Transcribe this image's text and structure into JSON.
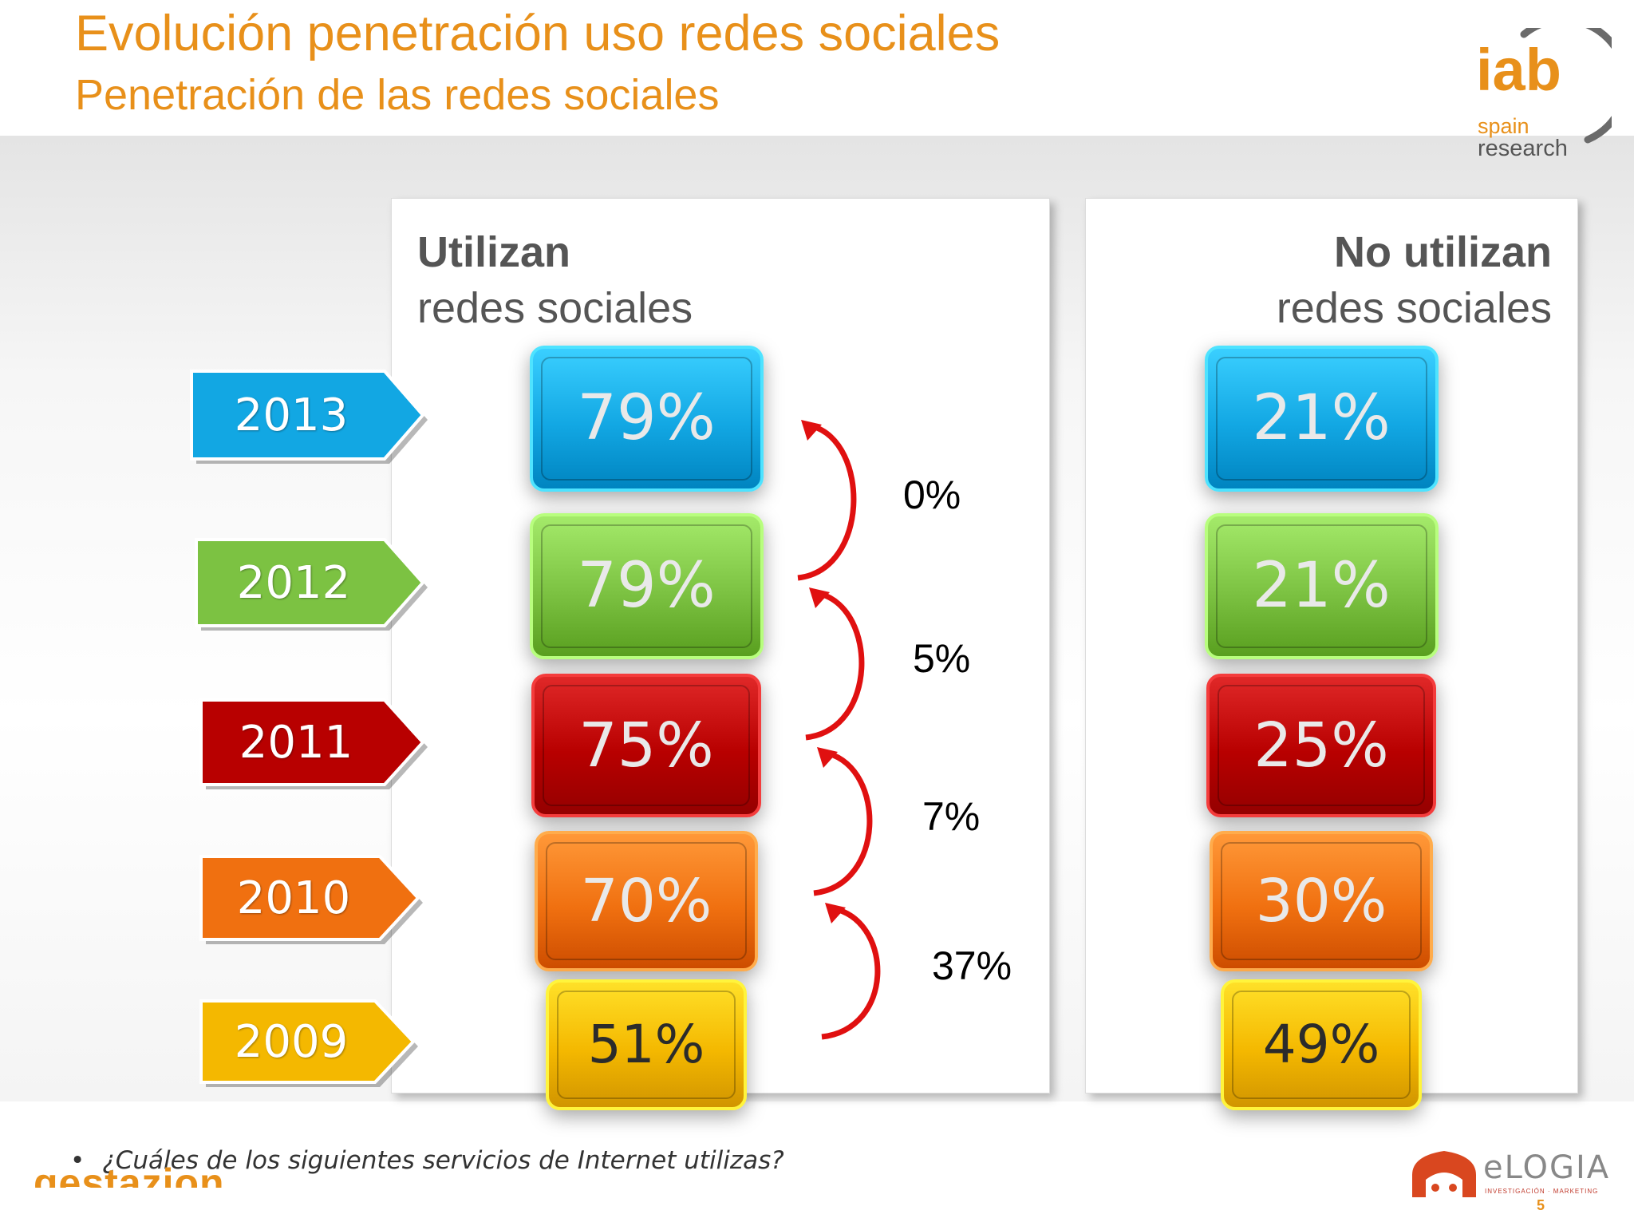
{
  "title": "Evolución penetración uso redes sociales",
  "subtitle": "Penetración de las redes sociales",
  "logo": {
    "main": "iab",
    "line1": "spain",
    "line2": "research"
  },
  "panels": {
    "left": {
      "heading_bold": "Utilizan",
      "heading": "redes sociales"
    },
    "right": {
      "heading_bold": "No utilizan",
      "heading": "redes sociales"
    }
  },
  "chart_data": {
    "type": "table",
    "categories": [
      "2013",
      "2012",
      "2011",
      "2010",
      "2009"
    ],
    "series": [
      {
        "name": "Utilizan redes sociales",
        "values": [
          79,
          79,
          75,
          70,
          51
        ],
        "labels": [
          "79%",
          "79%",
          "75%",
          "70%",
          "51%"
        ]
      },
      {
        "name": "No utilizan redes sociales",
        "values": [
          21,
          21,
          25,
          30,
          49
        ],
        "labels": [
          "21%",
          "21%",
          "25%",
          "30%",
          "49%"
        ]
      }
    ],
    "changes": [
      "0%",
      "5%",
      "7%",
      "37%"
    ]
  },
  "year_colors": [
    "#12a7e3",
    "#7cc242",
    "#b80000",
    "#f07010",
    "#f4b800"
  ],
  "question": "¿Cuáles de los siguientes servicios de Internet utilizas?",
  "footer": {
    "left_brand": "gestazion",
    "right_brand": "eLOGIA",
    "right_tagline": "INVESTIGACIÓN · MARKETING",
    "page_number": "5"
  }
}
